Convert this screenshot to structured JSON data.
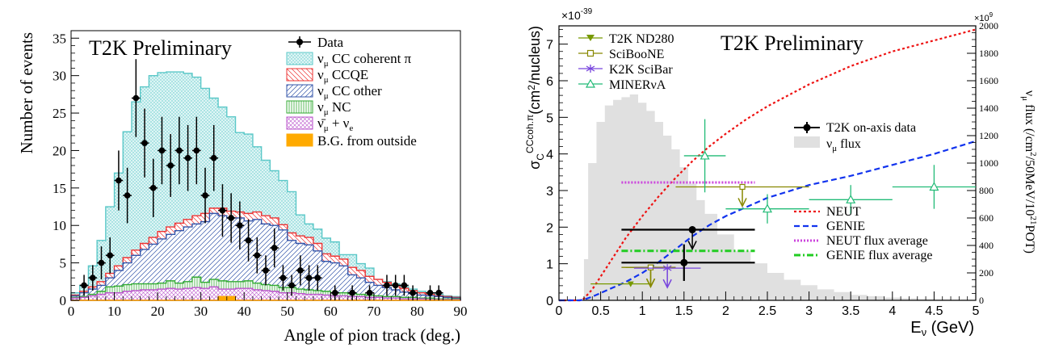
{
  "chart_data": [
    {
      "type": "histogram",
      "title": "T2K Preliminary",
      "xlabel": "Angle of pion track (deg.)",
      "ylabel": "Number of events",
      "xlim": [
        0,
        90
      ],
      "ylim": [
        0,
        36
      ],
      "x_ticks": [
        0,
        10,
        20,
        30,
        40,
        50,
        60,
        70,
        80,
        90
      ],
      "y_ticks": [
        0,
        5,
        10,
        15,
        20,
        25,
        30,
        35
      ],
      "legend": [
        "Data",
        "ν_μ CC coherent π",
        "ν_μ CCQE",
        "ν_μ CC other",
        "ν_μ NC",
        "ν̄_μ + ν_e",
        "B.G. from outside"
      ],
      "legend_position": "top-right",
      "bin_edges": [
        0,
        2,
        4,
        6,
        8,
        10,
        12,
        14,
        16,
        18,
        20,
        22,
        24,
        26,
        28,
        30,
        32,
        34,
        36,
        38,
        40,
        42,
        44,
        46,
        48,
        50,
        52,
        54,
        56,
        58,
        60,
        62,
        64,
        66,
        68,
        70,
        72,
        74,
        76,
        78,
        80,
        82,
        84,
        86,
        88,
        90
      ],
      "stacks": {
        "bg_outside": [
          0,
          0,
          0,
          0,
          0,
          0,
          0,
          0,
          0,
          0,
          0,
          0,
          0,
          0,
          0,
          0,
          0,
          0.5,
          0.5,
          0,
          0,
          0,
          0,
          0,
          0,
          0,
          0,
          0,
          0,
          0,
          0,
          0,
          0,
          0,
          0,
          0,
          0,
          0,
          0,
          0,
          0,
          0,
          0,
          0,
          0
        ],
        "anti_nue": [
          0.3,
          0.4,
          0.6,
          0.8,
          1.0,
          1.0,
          1.2,
          1.3,
          1.4,
          1.4,
          1.5,
          1.6,
          1.5,
          1.6,
          1.7,
          1.6,
          1.8,
          1.5,
          1.5,
          1.6,
          1.6,
          1.4,
          1.3,
          1.2,
          1.0,
          1.0,
          0.9,
          0.8,
          0.8,
          0.7,
          0.6,
          0.6,
          0.5,
          0.5,
          0.4,
          0.4,
          0.3,
          0.3,
          0.2,
          0.2,
          0.2,
          0.1,
          0.1,
          0.1,
          0.1
        ],
        "numu_nc": [
          0.4,
          0.5,
          0.8,
          1.2,
          1.8,
          1.9,
          2.1,
          2.2,
          2.2,
          2.2,
          2.3,
          2.6,
          2.3,
          2.5,
          3.1,
          2.4,
          2.8,
          2.6,
          2.5,
          2.5,
          2.6,
          2.3,
          2.1,
          2.0,
          1.7,
          1.7,
          1.5,
          1.4,
          1.3,
          1.2,
          1.0,
          1.0,
          0.9,
          0.8,
          0.7,
          0.6,
          0.5,
          0.5,
          0.4,
          0.4,
          0.3,
          0.3,
          0.2,
          0.2,
          0.2
        ],
        "numu_cc_other": [
          0.6,
          1.0,
          1.5,
          2.0,
          3.0,
          4.0,
          5.0,
          6.0,
          6.8,
          7.5,
          8.2,
          8.8,
          9.3,
          9.8,
          10.2,
          10.5,
          11.6,
          11.3,
          11.0,
          11.0,
          10.6,
          10.8,
          10.2,
          10.0,
          9.4,
          8.0,
          7.6,
          7.4,
          6.6,
          5.2,
          5.0,
          4.6,
          3.4,
          3.0,
          2.4,
          2.0,
          1.7,
          1.4,
          1.1,
          0.9,
          0.7,
          0.6,
          0.5,
          0.4,
          0.3
        ],
        "numu_ccqe": [
          0.7,
          1.2,
          1.8,
          2.5,
          3.6,
          4.6,
          5.7,
          6.7,
          7.6,
          8.4,
          9.2,
          9.8,
          10.3,
          10.8,
          11.3,
          11.6,
          12.3,
          12.3,
          11.9,
          11.8,
          11.6,
          11.8,
          11.3,
          11.0,
          10.1,
          9.0,
          8.6,
          8.4,
          7.6,
          6.2,
          5.9,
          5.5,
          4.4,
          4.0,
          3.2,
          2.8,
          2.4,
          2.0,
          1.6,
          1.3,
          1.0,
          0.8,
          0.6,
          0.5,
          0.4
        ],
        "numu_cc_coh": [
          1.0,
          2.0,
          4.6,
          8.0,
          12.5,
          17.0,
          22.5,
          26.5,
          28.5,
          30.0,
          30.4,
          30.5,
          30.5,
          30.3,
          29.8,
          28.3,
          27.0,
          25.8,
          24.5,
          22.4,
          22.2,
          20.5,
          18.7,
          17.3,
          16.0,
          14.5,
          11.4,
          10.2,
          9.5,
          8.3,
          7.8,
          6.1,
          6.1,
          4.9,
          4.3,
          2.8,
          2.5,
          2.2,
          1.8,
          1.5,
          1.2,
          1.0,
          0.8,
          0.6,
          0.5
        ]
      },
      "data_points": {
        "x": [
          1,
          3,
          5,
          7,
          9,
          11,
          13,
          15,
          17,
          19,
          21,
          23,
          25,
          27,
          29,
          31,
          33,
          35,
          37,
          39,
          41,
          43,
          45,
          47,
          49,
          51,
          53,
          55,
          57,
          59,
          61,
          63,
          65,
          67,
          69,
          71,
          73,
          75,
          77,
          79,
          81,
          83,
          85,
          87,
          89
        ],
        "y": [
          1,
          2,
          3,
          5,
          6,
          16,
          14,
          27,
          21,
          15,
          20,
          18,
          20,
          19,
          20,
          14,
          19,
          12,
          11,
          10,
          8,
          6,
          4,
          7,
          3,
          2,
          4,
          3,
          3,
          0,
          1,
          0,
          1,
          0,
          1,
          0,
          2,
          2,
          2,
          1,
          1,
          1,
          1,
          0,
          0
        ],
        "err": [
          1,
          1.4,
          1.7,
          2.2,
          2.4,
          4,
          3.7,
          5.2,
          4.6,
          3.9,
          4.5,
          4.2,
          4.5,
          4.4,
          4.5,
          3.7,
          4.4,
          3.5,
          3.3,
          3.2,
          2.8,
          2.4,
          2,
          2.6,
          1.7,
          1.4,
          2,
          1.7,
          1.7,
          0,
          1,
          0,
          1,
          0,
          1,
          0,
          1.4,
          1.4,
          1.4,
          1,
          1,
          1,
          1,
          0,
          0
        ]
      },
      "data_shown": [
        0,
        1,
        1,
        1,
        1,
        1,
        1,
        1,
        1,
        1,
        1,
        1,
        1,
        1,
        1,
        1,
        1,
        1,
        1,
        1,
        1,
        1,
        1,
        1,
        1,
        1,
        1,
        1,
        1,
        0,
        1,
        0,
        1,
        0,
        1,
        0,
        1,
        1,
        1,
        1,
        0,
        1,
        1,
        0,
        0
      ],
      "colors": {
        "coherent": "#5bc8c8",
        "ccqe": "#ee3333",
        "cc_other": "#3355aa",
        "nc": "#33aa33",
        "anti_nue": "#bb55cc",
        "bg_outside": "#ffaa00"
      }
    },
    {
      "type": "line",
      "title": "T2K Preliminary",
      "xlabel": "E_ν (GeV)",
      "ylabel": "σ_C^{CCcoh.π} (cm²/nucleus)",
      "y_multiplier": "×10^-39",
      "y2label": "ν_μ flux (/cm²/50MeV/10²¹POT)",
      "y2_multiplier": "×10^9",
      "xlim": [
        0,
        5
      ],
      "ylim": [
        0,
        7.5
      ],
      "y2lim": [
        0,
        2000
      ],
      "x_ticks": [
        0,
        0.5,
        1,
        1.5,
        2,
        2.5,
        3,
        3.5,
        4,
        4.5,
        5
      ],
      "y_ticks": [
        0,
        1,
        2,
        3,
        4,
        5,
        6,
        7
      ],
      "y2_ticks": [
        0,
        200,
        400,
        600,
        800,
        1000,
        1200,
        1400,
        1600,
        1800,
        2000
      ],
      "legend_experiments": [
        "T2K ND280",
        "SciBooNE",
        "K2K SciBar",
        "MINERνA"
      ],
      "legend_t2k": [
        "T2K on-axis data",
        "ν_μ flux"
      ],
      "legend_models": [
        "NEUT",
        "GENIE",
        "NEUT flux average",
        "GENIE flux average"
      ],
      "neut": {
        "x": [
          0,
          0.25,
          0.3,
          0.4,
          0.5,
          0.6,
          0.7,
          0.8,
          1,
          1.2,
          1.4,
          1.6,
          1.8,
          2,
          2.25,
          2.5,
          2.75,
          3,
          3.5,
          4,
          4.5,
          5
        ],
        "y": [
          0,
          0,
          0.05,
          0.3,
          0.65,
          1.0,
          1.35,
          1.7,
          2.3,
          2.85,
          3.35,
          3.8,
          4.2,
          4.55,
          4.95,
          5.3,
          5.6,
          5.9,
          6.4,
          6.8,
          7.1,
          7.4
        ]
      },
      "genie": {
        "x": [
          0,
          0.25,
          0.3,
          0.4,
          0.5,
          0.6,
          0.7,
          0.8,
          1,
          1.2,
          1.4,
          1.6,
          1.8,
          2,
          2.5,
          3,
          3.5,
          4,
          4.5,
          5
        ],
        "y": [
          0,
          0,
          0.02,
          0.1,
          0.2,
          0.3,
          0.4,
          0.5,
          0.75,
          1.05,
          1.4,
          1.75,
          2.05,
          2.3,
          2.8,
          3.15,
          3.4,
          3.7,
          4.0,
          4.35
        ]
      },
      "neut_flux_average": {
        "x": [
          0.75,
          2.35
        ],
        "y": 3.22
      },
      "genie_flux_average": {
        "x": [
          0.75,
          2.35
        ],
        "y": 1.35
      },
      "t2k_on_axis": [
        {
          "x": 1.6,
          "y": 1.93,
          "xerr": [
            0.75,
            2.35
          ],
          "upper_limit": true
        },
        {
          "x": 1.5,
          "y": 1.03,
          "xerr": [
            0.75,
            2.35
          ],
          "yerr": 0.5
        }
      ],
      "t2k_nd280": [
        {
          "x": 0.86,
          "y": 0.45,
          "xerr": [
            0.38,
            1.1
          ]
        },
        {
          "x": 1.1,
          "y": 0.9,
          "xerr": [
            0.8,
            1.3
          ],
          "upper_limit": true
        }
      ],
      "sciboone": [
        {
          "x": 2.2,
          "y": 3.1,
          "xerr": [
            1.4,
            3.0
          ],
          "upper_limit": true
        },
        {
          "x": 1.1,
          "y": 0.9,
          "xerr": [
            0.75,
            1.4
          ],
          "upper_limit": true
        }
      ],
      "k2k_scibar": [
        {
          "x": 1.3,
          "y": 0.88,
          "xerr": [
            0.9,
            1.7
          ],
          "upper_limit": true
        }
      ],
      "minerva": [
        {
          "x": 1.75,
          "y": 3.95,
          "xerr": [
            1.5,
            2.0
          ],
          "yerr": 1.0
        },
        {
          "x": 2.5,
          "y": 2.5,
          "xerr": [
            2.0,
            3.0
          ],
          "yerr": 0.4
        },
        {
          "x": 3.5,
          "y": 2.75,
          "xerr": [
            3.0,
            4.0
          ],
          "yerr": 0.4
        },
        {
          "x": 4.5,
          "y": 3.1,
          "xerr": [
            4.0,
            5.0
          ],
          "yerr": 0.6
        }
      ],
      "flux": {
        "x": [
          0.3,
          0.4,
          0.5,
          0.6,
          0.7,
          0.8,
          0.9,
          1.0,
          1.1,
          1.2,
          1.3,
          1.4,
          1.5,
          1.6,
          1.7,
          1.8,
          2.0,
          2.2,
          2.4,
          2.6,
          2.8,
          3.0,
          3.2,
          3.4,
          3.6,
          3.8,
          4.0,
          4.2,
          4.4,
          4.6,
          4.8,
          5.0
        ],
        "y": [
          300,
          1000,
          1300,
          1420,
          1460,
          1480,
          1500,
          1440,
          1380,
          1300,
          1200,
          1100,
          970,
          850,
          730,
          630,
          480,
          360,
          270,
          200,
          150,
          110,
          80,
          60,
          40,
          30,
          20,
          15,
          10,
          8,
          5,
          4
        ]
      },
      "colors": {
        "neut": "#ee1111",
        "genie": "#1133ee",
        "neut_flux_avg": "#cc44dd",
        "genie_flux_avg": "#22cc22",
        "t2k_nd280": "#779900",
        "sciboone": "#888800",
        "k2k_scibar": "#7744dd",
        "minerva": "#22bb77",
        "flux": "#e0e0e0"
      }
    }
  ]
}
